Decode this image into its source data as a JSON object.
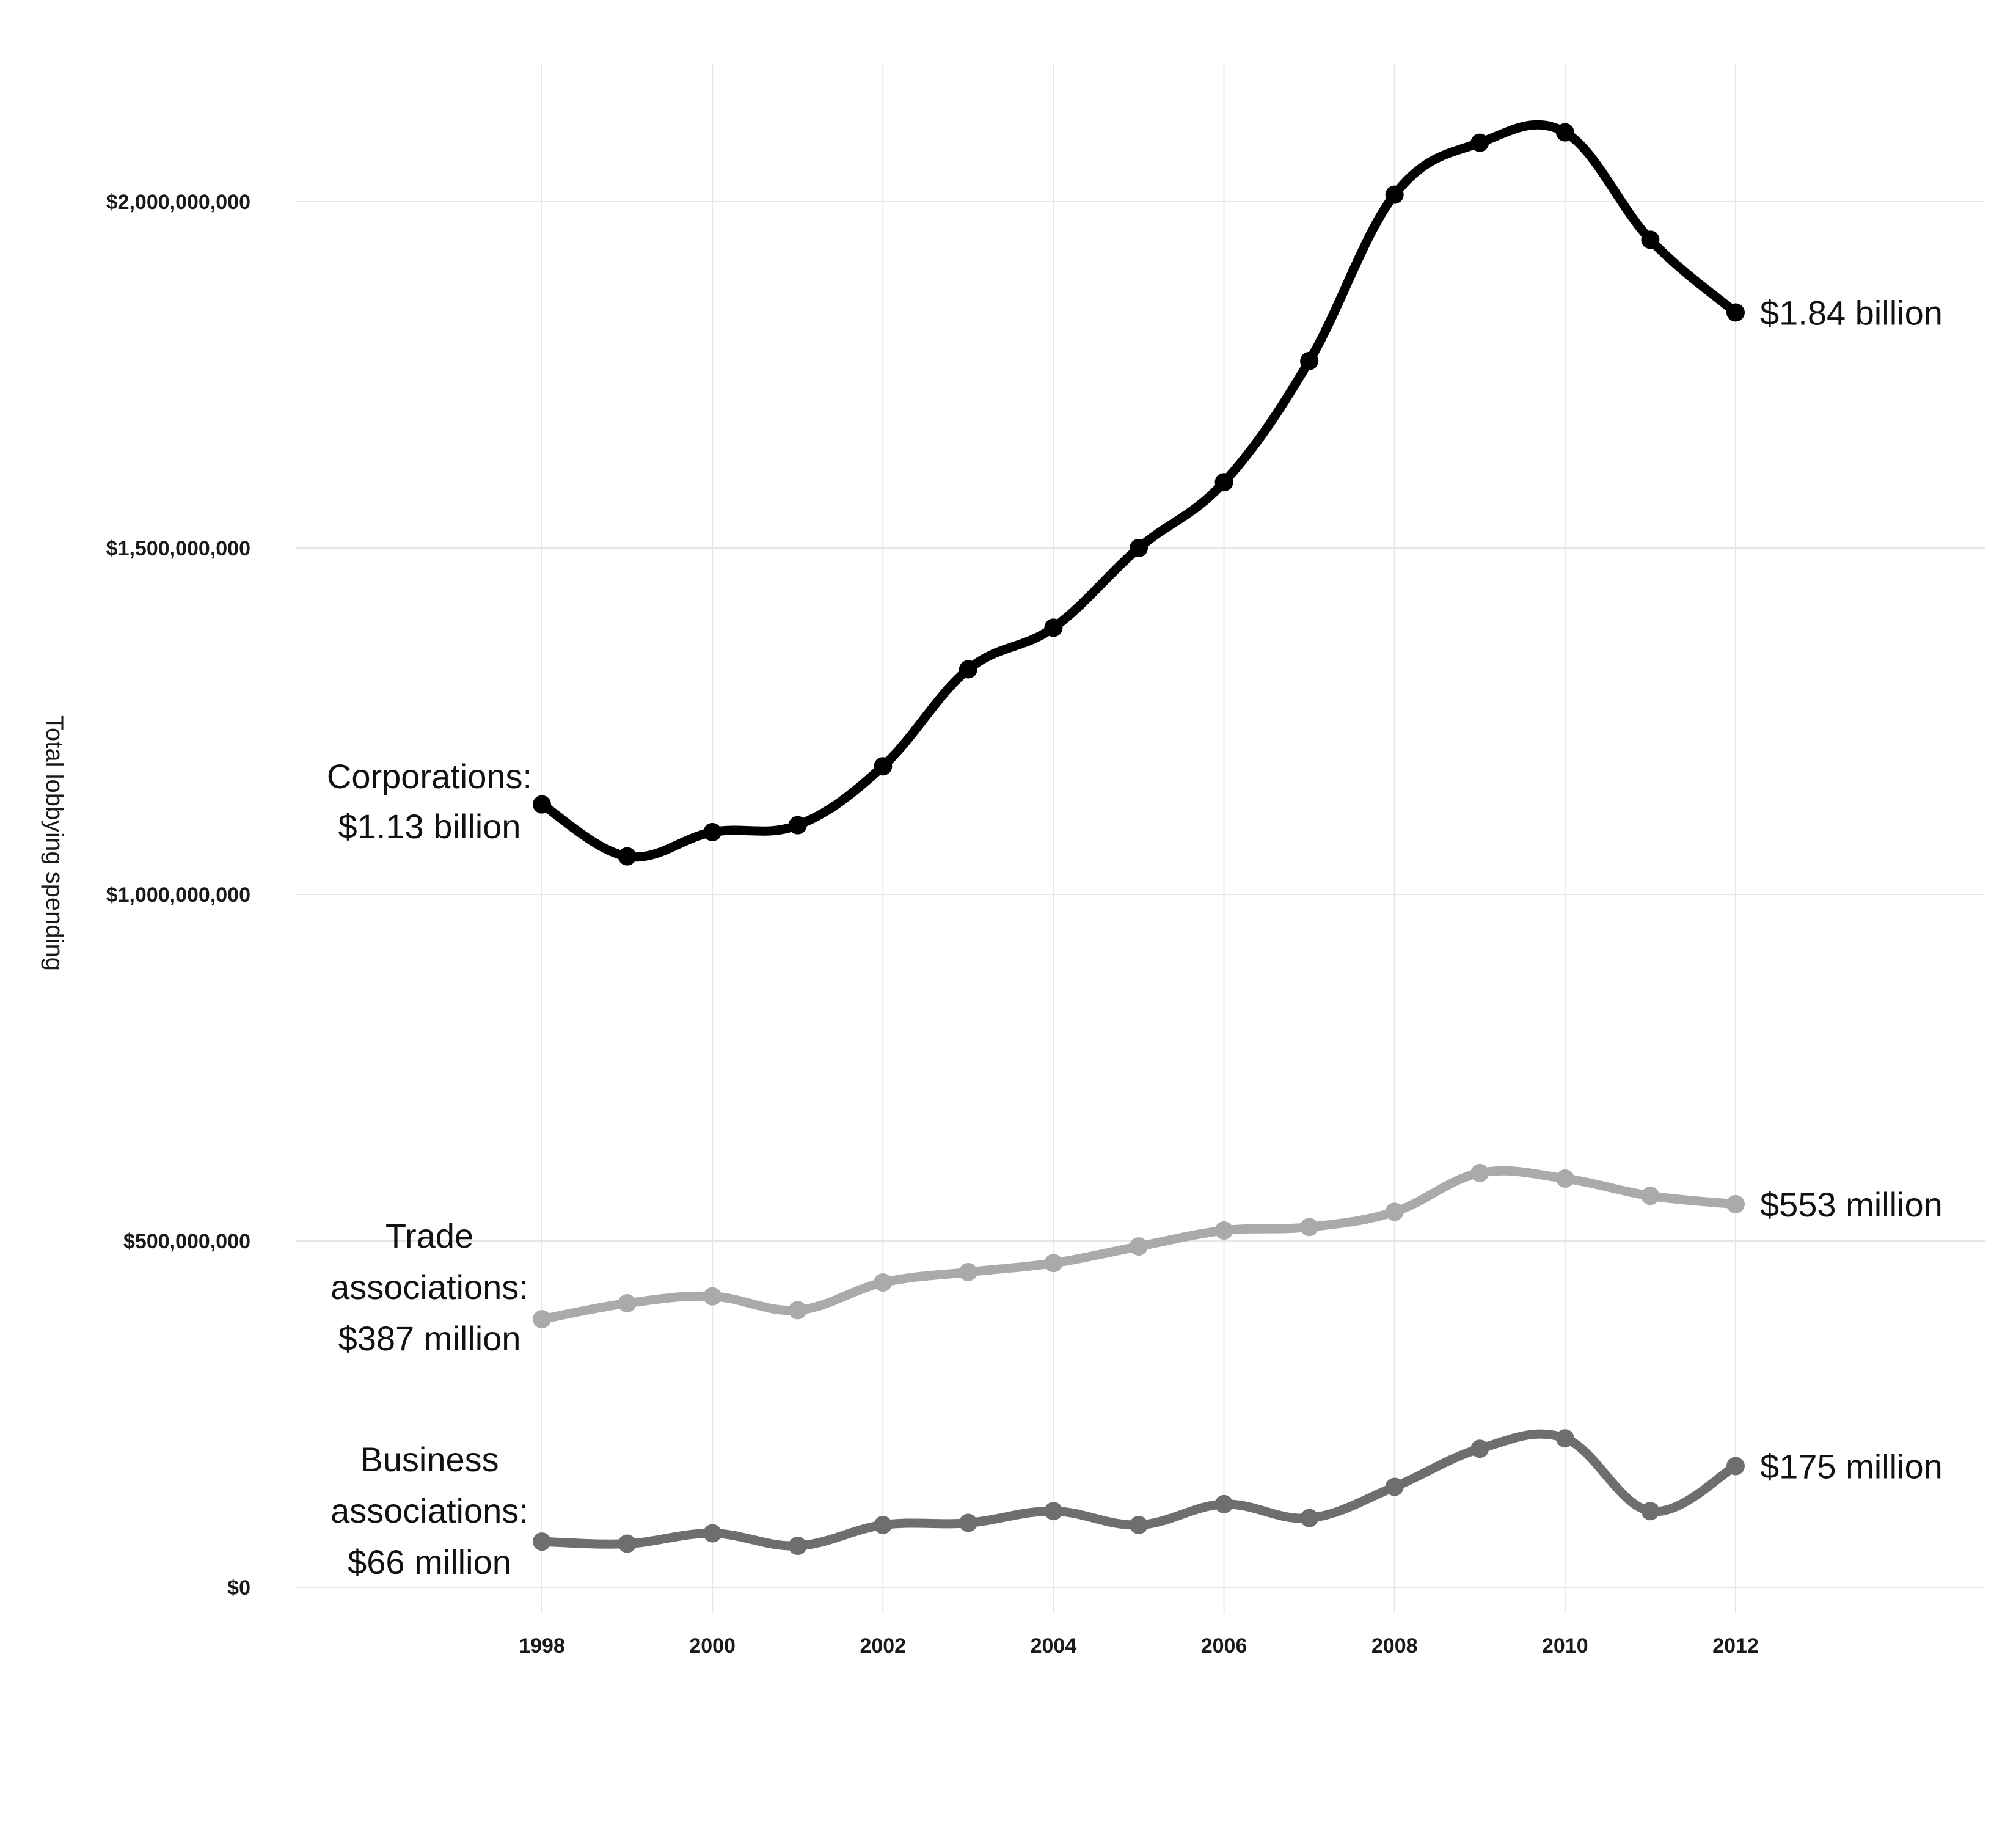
{
  "chart_data": {
    "type": "line",
    "ylabel": "Total lobbying spending",
    "xlabel": "",
    "ylim": [
      0,
      2200000000
    ],
    "y_ticks": [
      {
        "value": 0,
        "label": "$0"
      },
      {
        "value": 500000000,
        "label": "$500,000,000"
      },
      {
        "value": 1000000000,
        "label": "$1,000,000,000"
      },
      {
        "value": 1500000000,
        "label": "$1,500,000,000"
      },
      {
        "value": 2000000000,
        "label": "$2,000,000,000"
      }
    ],
    "x": [
      1998,
      1999,
      2000,
      2001,
      2002,
      2003,
      2004,
      2005,
      2006,
      2007,
      2008,
      2009,
      2010,
      2011,
      2012
    ],
    "x_ticks": [
      "1998",
      "2000",
      "2002",
      "2004",
      "2006",
      "2008",
      "2010",
      "2012"
    ],
    "grid": true,
    "legend": "none",
    "series": [
      {
        "color": "#000000",
        "start_label": [
          "Corporations:",
          "$1.13 billion"
        ],
        "end_label": "$1.84 billion",
        "values": [
          1130000000,
          1055000000,
          1090000000,
          1100000000,
          1185000000,
          1325000000,
          1385000000,
          1500000000,
          1595000000,
          1770000000,
          2010000000,
          2085000000,
          2100000000,
          1945000000,
          1840000000
        ]
      },
      {
        "color": "#aaaaaa",
        "start_label": [
          "Trade",
          "associations:",
          "$387 million"
        ],
        "end_label": "$553 million",
        "values": [
          387000000,
          410000000,
          420000000,
          400000000,
          440000000,
          455000000,
          468000000,
          492000000,
          515000000,
          520000000,
          542000000,
          598000000,
          590000000,
          565000000,
          553000000
        ]
      },
      {
        "color": "#6e6e6e",
        "start_label": [
          "Business",
          "associations:",
          "$66 million"
        ],
        "end_label": "$175 million",
        "values": [
          66000000,
          63000000,
          78000000,
          60000000,
          90000000,
          93000000,
          110000000,
          90000000,
          120000000,
          100000000,
          145000000,
          200000000,
          215000000,
          110000000,
          175000000
        ]
      }
    ]
  }
}
